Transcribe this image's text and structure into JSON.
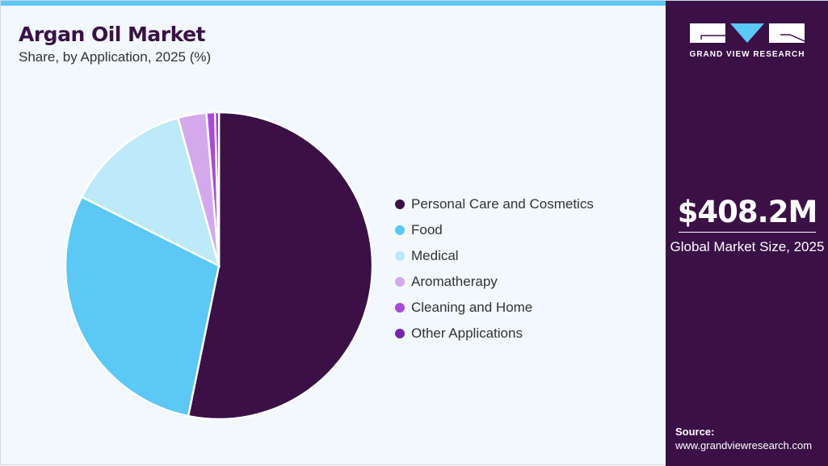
{
  "header": {
    "title": "Argan Oil Market",
    "subtitle": "Share, by Application, 2025 (%)"
  },
  "chart_data": {
    "type": "pie",
    "categories": [
      "Personal Care and Cosmetics",
      "Food",
      "Medical",
      "Aromatherapy",
      "Cleaning and Home",
      "Other Applications"
    ],
    "values": [
      53.2,
      29.2,
      13.3,
      3.0,
      0.9,
      0.4
    ],
    "colors": [
      "#3a1046",
      "#5bc8f5",
      "#bde9f8",
      "#d4a9ec",
      "#a94bd6",
      "#7b28a8"
    ],
    "legend_position": "right",
    "start_angle": "top, clockwise"
  },
  "sidebar": {
    "logo_text": "GRAND VIEW RESEARCH",
    "market_value": "$408.2M",
    "market_label": "Global Market Size, 2025",
    "source_label": "Source:",
    "source_url": "www.grandviewresearch.com"
  }
}
